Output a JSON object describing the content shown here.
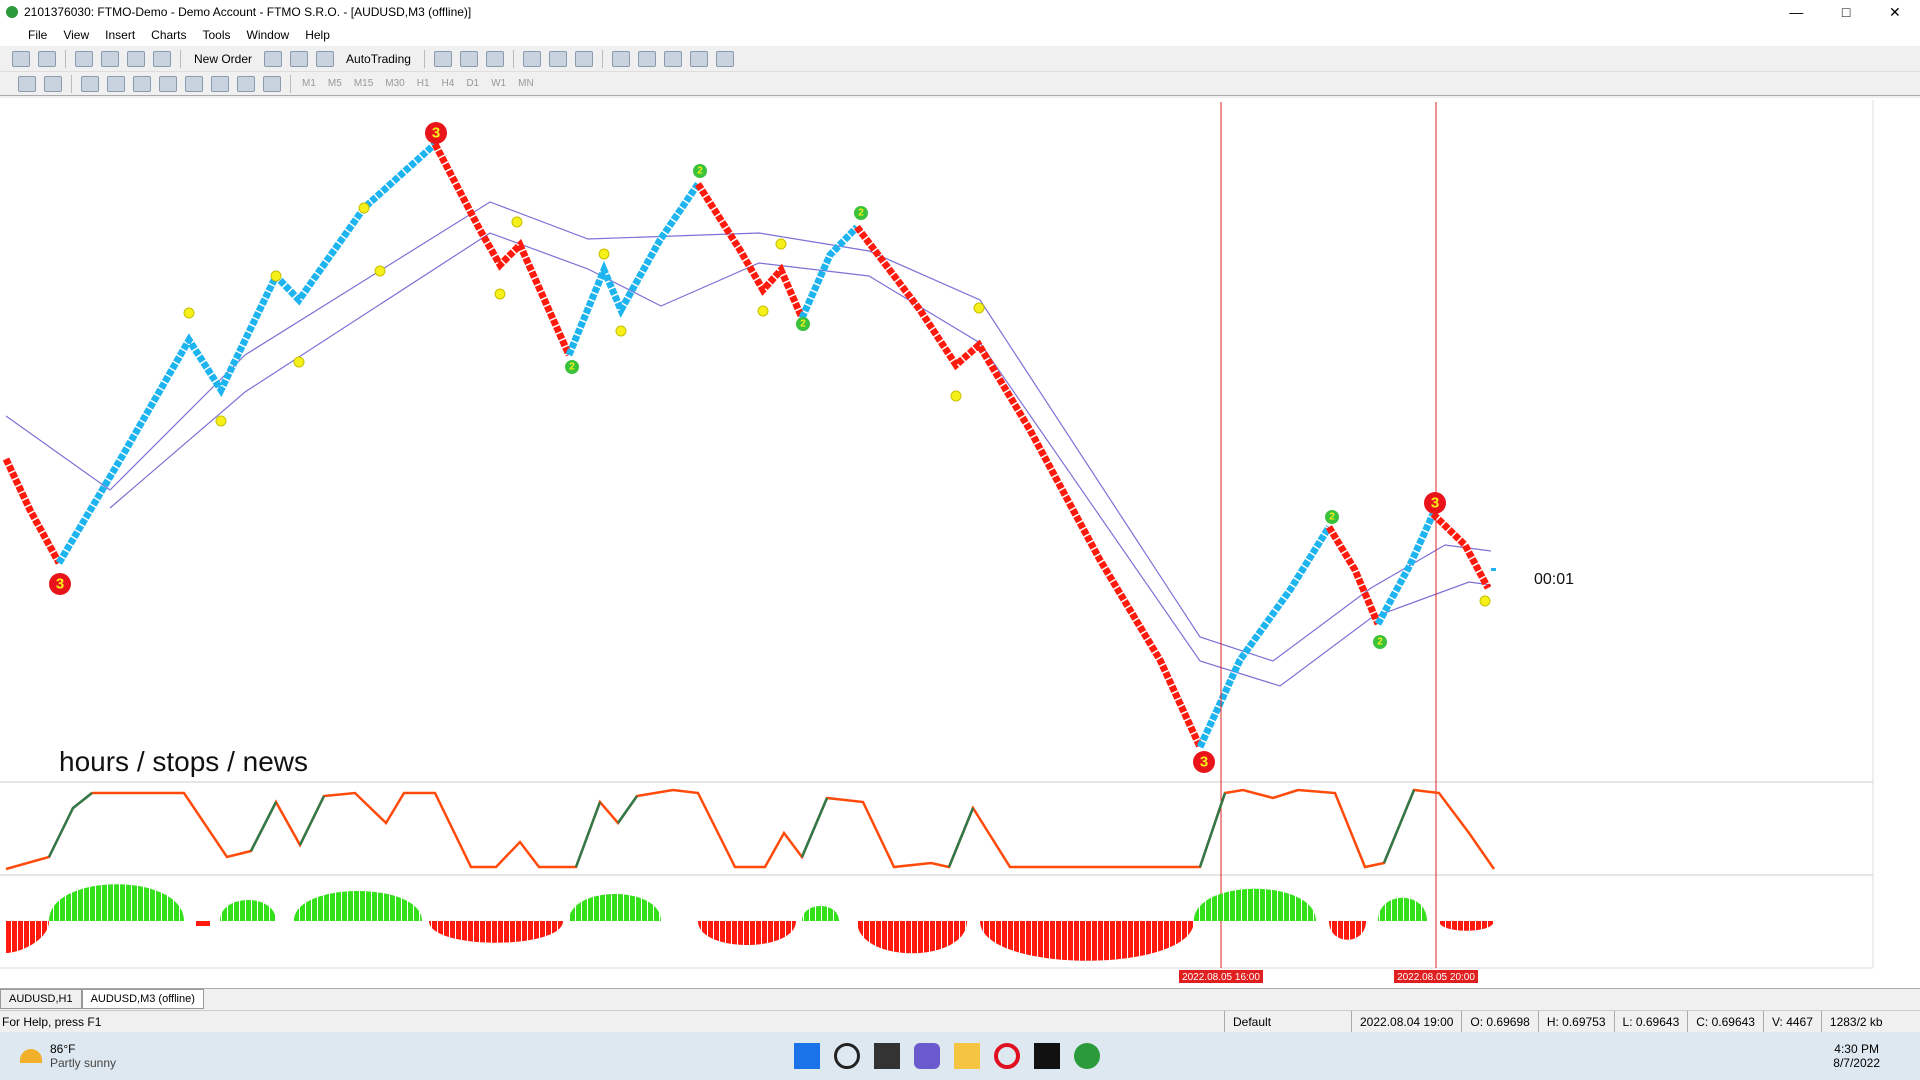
{
  "window": {
    "title": "2101376030: FTMO-Demo - Demo Account - FTMO S.R.O. - [AUDUSD,M3 (offline)]"
  },
  "menu": [
    "File",
    "View",
    "Insert",
    "Charts",
    "Tools",
    "Window",
    "Help"
  ],
  "toolbar": {
    "new_order": "New Order",
    "auto_trading": "AutoTrading",
    "timeframes": [
      "M1",
      "M5",
      "M15",
      "M30",
      "H1",
      "H4",
      "D1",
      "W1",
      "MN"
    ]
  },
  "chart": {
    "annotation": "hours / stops / news",
    "timer": "00:01",
    "signals": [
      "3",
      "3",
      "3",
      "3",
      "2",
      "2",
      "2",
      "2",
      "2",
      "2"
    ],
    "vlines": [
      "2022.08.05 16:00",
      "2022.08.05 20:00"
    ]
  },
  "tabs": [
    "AUDUSD,H1",
    "AUDUSD,M3 (offline)"
  ],
  "status": {
    "help": "For Help, press F1",
    "profile": "Default",
    "time": "2022.08.04 19:00",
    "open": "O: 0.69698",
    "high": "H: 0.69753",
    "low": "L: 0.69643",
    "close": "C: 0.69643",
    "volume": "V: 4467",
    "traffic": "1283/2 kb"
  },
  "taskbar": {
    "temp": "86°F",
    "weather": "Partly sunny",
    "clock": "4:30 PM",
    "date": "8/7/2022"
  }
}
